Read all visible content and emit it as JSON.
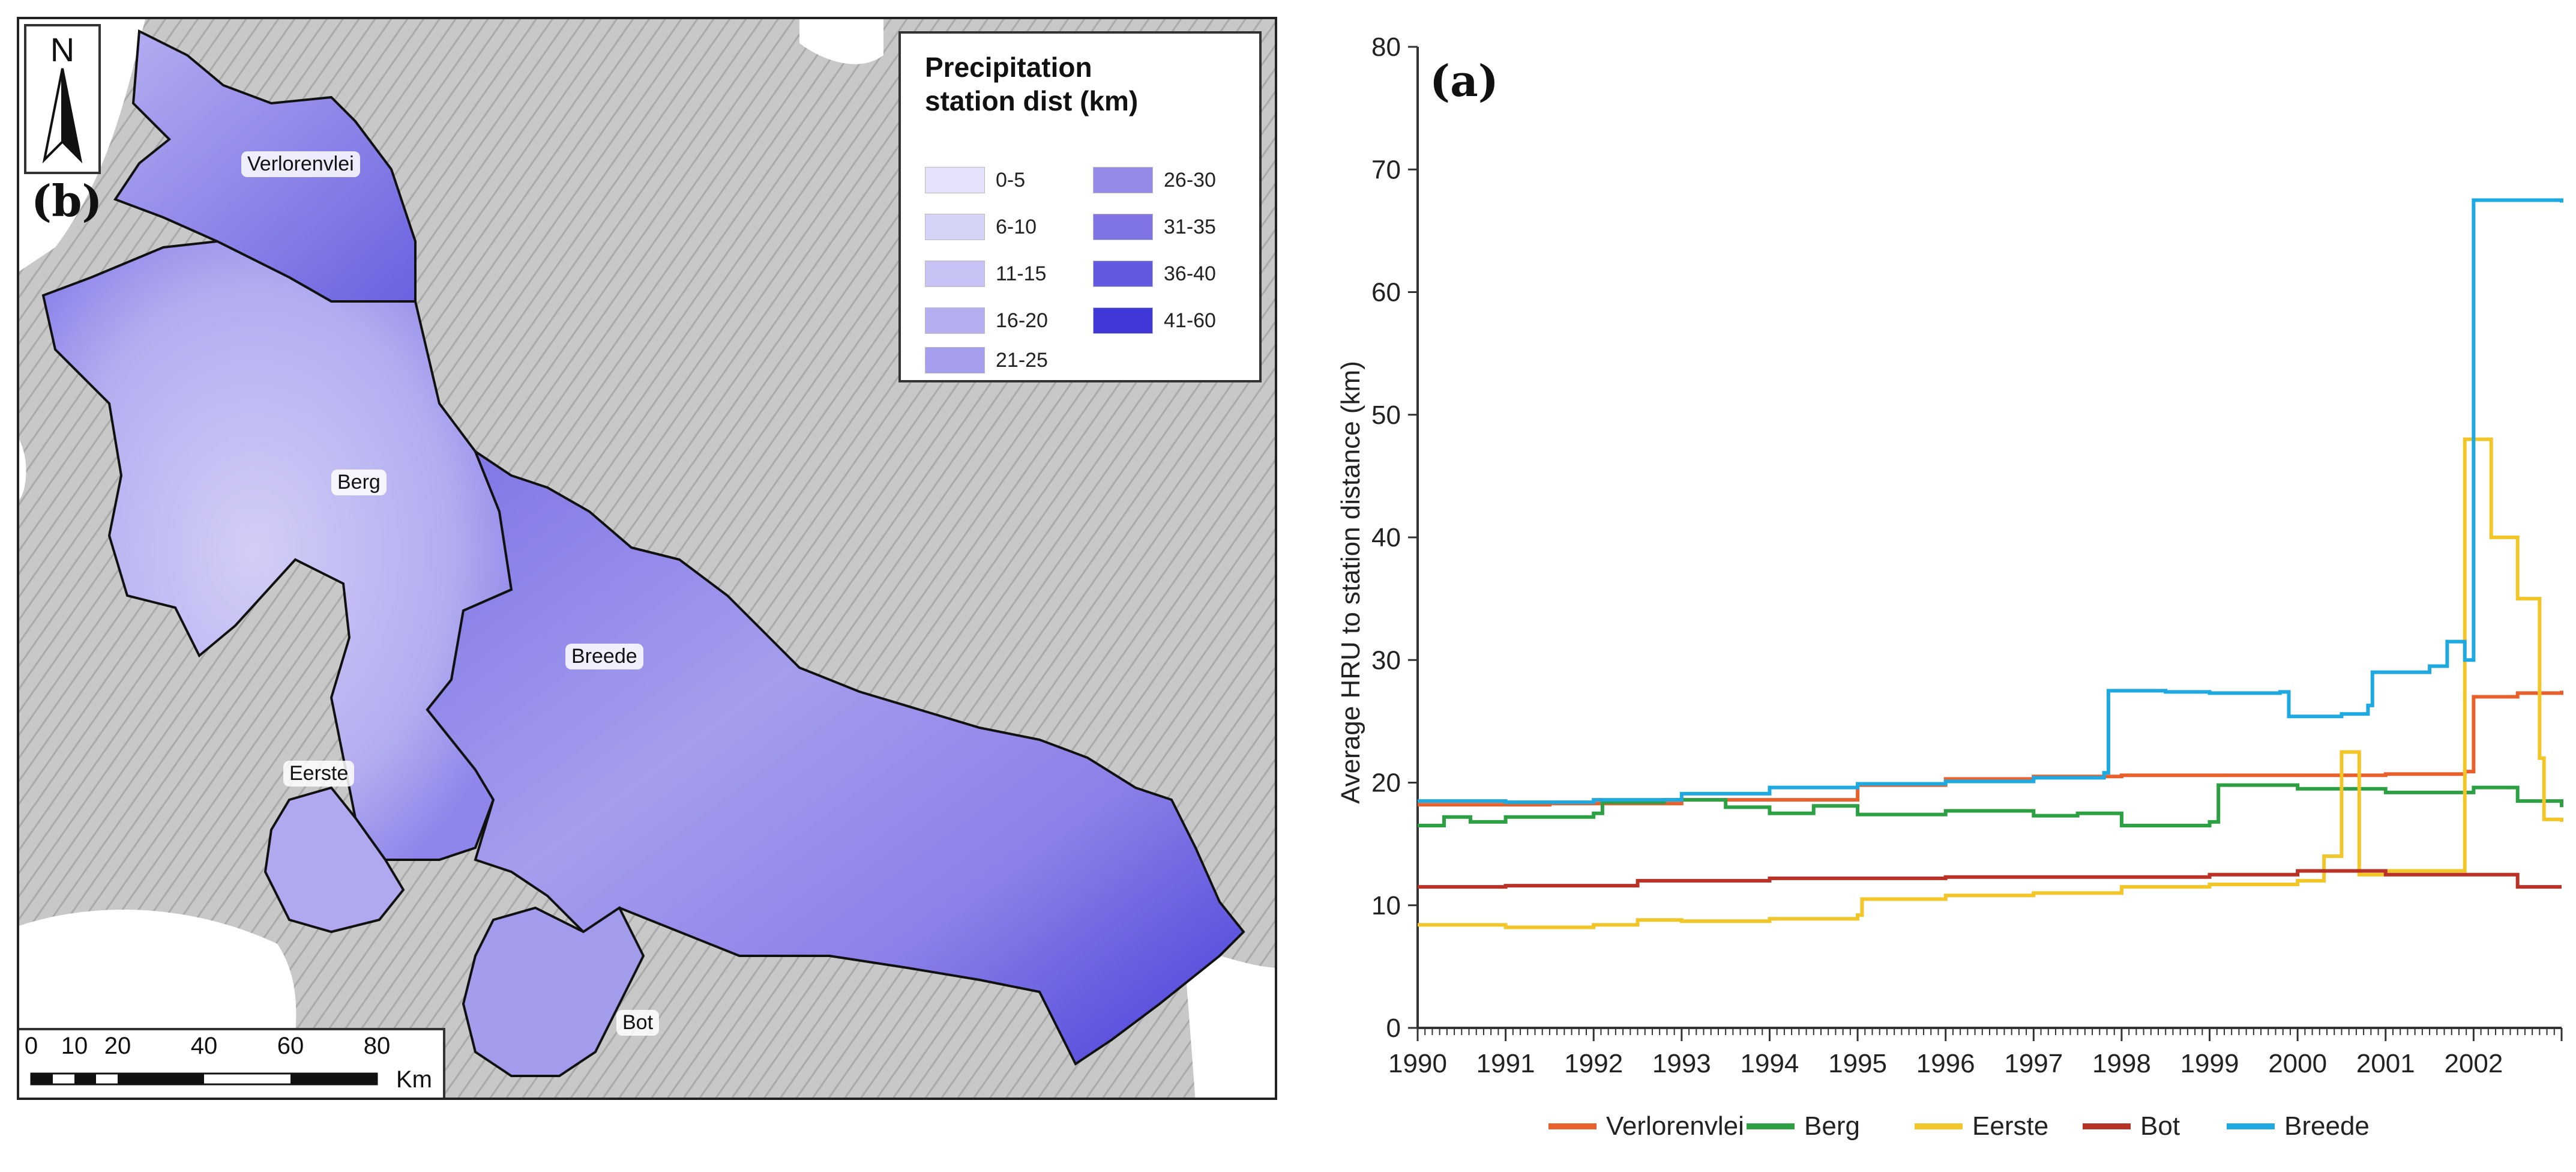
{
  "map": {
    "panel_letter": "(b)",
    "north_label": "N",
    "legend_title_line1": "Precipitation",
    "legend_title_line2": "station dist (km)",
    "legend_items": [
      {
        "label": "0-5",
        "color": "#e3e1fb"
      },
      {
        "label": "6-10",
        "color": "#d6d3f8"
      },
      {
        "label": "11-15",
        "color": "#c7c2f4"
      },
      {
        "label": "16-20",
        "color": "#b5aef1"
      },
      {
        "label": "21-25",
        "color": "#a59ded"
      },
      {
        "label": "26-30",
        "color": "#948be9"
      },
      {
        "label": "31-35",
        "color": "#7e74e5"
      },
      {
        "label": "36-40",
        "color": "#6259e0"
      },
      {
        "label": "41-60",
        "color": "#3f37d6"
      }
    ],
    "regions": {
      "verlorenvlei": "Verlorenvlei",
      "berg": "Berg",
      "breede": "Breede",
      "eerste": "Eerste",
      "bot": "Bot"
    },
    "scale_ticks": [
      "0",
      "10",
      "20",
      "40",
      "60",
      "80"
    ],
    "scale_unit": "Km"
  },
  "chart_data": {
    "type": "line",
    "panel_letter": "(a)",
    "title": "",
    "xlabel": "",
    "ylabel": "Average HRU to station distance (km)",
    "xlim": [
      1990,
      2003
    ],
    "ylim": [
      0,
      80
    ],
    "xticks": [
      1990,
      1991,
      1992,
      1993,
      1994,
      1995,
      1996,
      1997,
      1998,
      1999,
      2000,
      2001,
      2002
    ],
    "yticks": [
      0,
      10,
      20,
      30,
      40,
      50,
      60,
      70,
      80
    ],
    "grid": false,
    "legend_position": "bottom",
    "series": [
      {
        "name": "Verlorenvlei",
        "color": "#e8612c",
        "points": [
          [
            1990.0,
            18.2
          ],
          [
            1991.5,
            18.3
          ],
          [
            1993.0,
            18.6
          ],
          [
            1995.0,
            19.8
          ],
          [
            1996.0,
            20.3
          ],
          [
            1997.0,
            20.5
          ],
          [
            1998.0,
            20.6
          ],
          [
            2000.0,
            20.6
          ],
          [
            2001.0,
            20.7
          ],
          [
            2001.9,
            20.9
          ],
          [
            2002.0,
            27.0
          ],
          [
            2002.5,
            27.3
          ],
          [
            2003.0,
            27.5
          ]
        ]
      },
      {
        "name": "Berg",
        "color": "#2ca043",
        "points": [
          [
            1990.0,
            16.5
          ],
          [
            1990.3,
            17.2
          ],
          [
            1990.6,
            16.8
          ],
          [
            1991.0,
            17.2
          ],
          [
            1992.0,
            17.5
          ],
          [
            1992.1,
            18.4
          ],
          [
            1992.8,
            18.6
          ],
          [
            1993.5,
            18.0
          ],
          [
            1994.0,
            17.5
          ],
          [
            1994.5,
            18.1
          ],
          [
            1995.0,
            17.4
          ],
          [
            1996.0,
            17.7
          ],
          [
            1997.0,
            17.3
          ],
          [
            1997.5,
            17.5
          ],
          [
            1998.0,
            16.5
          ],
          [
            1999.0,
            16.8
          ],
          [
            1999.1,
            19.8
          ],
          [
            2000.0,
            19.5
          ],
          [
            2001.0,
            19.2
          ],
          [
            2002.0,
            19.6
          ],
          [
            2002.5,
            18.5
          ],
          [
            2003.0,
            18.0
          ]
        ]
      },
      {
        "name": "Eerste",
        "color": "#f2c529",
        "points": [
          [
            1990.0,
            8.4
          ],
          [
            1991.0,
            8.2
          ],
          [
            1992.0,
            8.4
          ],
          [
            1992.5,
            8.8
          ],
          [
            1993.0,
            8.7
          ],
          [
            1994.0,
            8.9
          ],
          [
            1995.0,
            9.2
          ],
          [
            1995.05,
            10.5
          ],
          [
            1996.0,
            10.8
          ],
          [
            1997.0,
            11.0
          ],
          [
            1998.0,
            11.5
          ],
          [
            1999.0,
            11.7
          ],
          [
            2000.0,
            12.0
          ],
          [
            2000.3,
            14.0
          ],
          [
            2000.5,
            22.5
          ],
          [
            2000.7,
            12.5
          ],
          [
            2001.0,
            12.8
          ],
          [
            2001.8,
            12.8
          ],
          [
            2001.9,
            48.0
          ],
          [
            2002.2,
            40.0
          ],
          [
            2002.5,
            35.0
          ],
          [
            2002.75,
            22.0
          ],
          [
            2002.8,
            17.0
          ],
          [
            2003.0,
            16.8
          ]
        ]
      },
      {
        "name": "Bot",
        "color": "#b83228",
        "points": [
          [
            1990.0,
            11.5
          ],
          [
            1991.0,
            11.6
          ],
          [
            1992.0,
            11.6
          ],
          [
            1992.5,
            12.0
          ],
          [
            1993.0,
            12.0
          ],
          [
            1994.0,
            12.2
          ],
          [
            1995.0,
            12.2
          ],
          [
            1996.0,
            12.3
          ],
          [
            1997.0,
            12.3
          ],
          [
            1998.0,
            12.3
          ],
          [
            1999.0,
            12.5
          ],
          [
            2000.0,
            12.8
          ],
          [
            2001.0,
            12.5
          ],
          [
            2002.0,
            12.5
          ],
          [
            2002.5,
            11.5
          ],
          [
            2003.0,
            11.5
          ]
        ]
      },
      {
        "name": "Breede",
        "color": "#1fa9e1",
        "points": [
          [
            1990.0,
            18.5
          ],
          [
            1991.0,
            18.4
          ],
          [
            1992.0,
            18.6
          ],
          [
            1993.0,
            19.1
          ],
          [
            1994.0,
            19.6
          ],
          [
            1995.0,
            19.9
          ],
          [
            1996.0,
            20.1
          ],
          [
            1997.0,
            20.4
          ],
          [
            1997.8,
            20.8
          ],
          [
            1997.85,
            27.5
          ],
          [
            1998.5,
            27.4
          ],
          [
            1999.0,
            27.3
          ],
          [
            1999.8,
            27.4
          ],
          [
            1999.9,
            25.4
          ],
          [
            2000.5,
            25.6
          ],
          [
            2000.8,
            26.3
          ],
          [
            2000.85,
            29.0
          ],
          [
            2001.5,
            29.5
          ],
          [
            2001.7,
            31.5
          ],
          [
            2001.9,
            30.0
          ],
          [
            2002.0,
            67.5
          ],
          [
            2003.0,
            67.3
          ]
        ]
      }
    ]
  }
}
